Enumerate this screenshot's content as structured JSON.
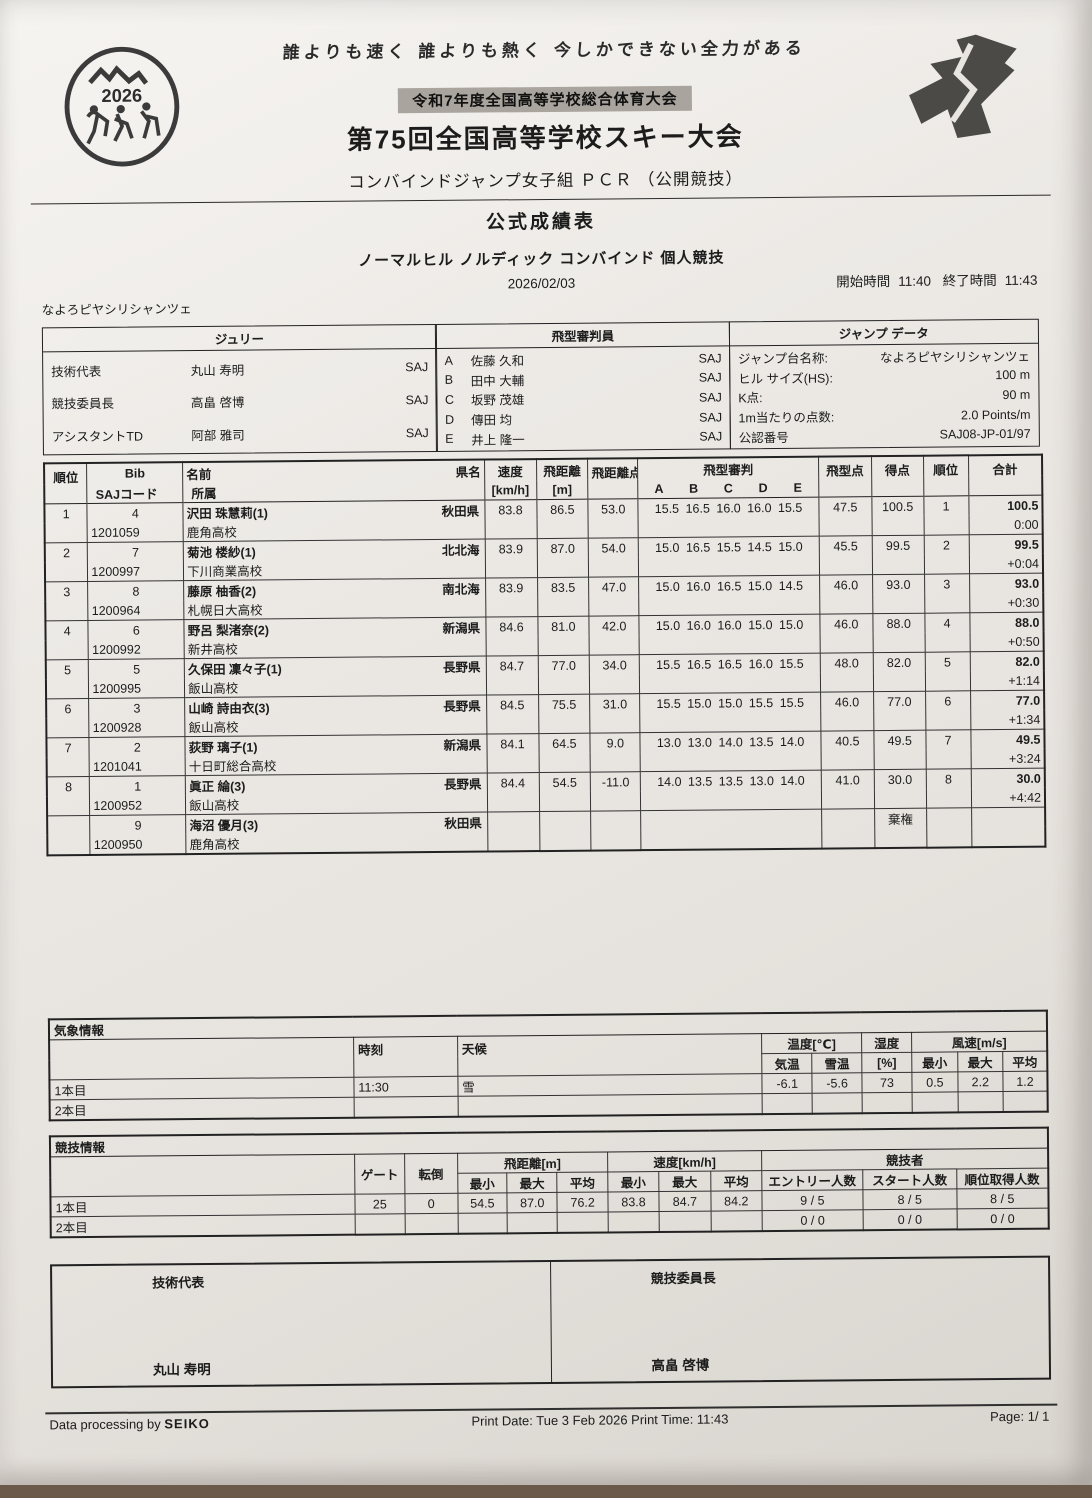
{
  "header": {
    "slogan": "誰よりも速く 誰よりも熱く 今しかできない全力がある",
    "banner": "令和7年度全国高等学校総合体育大会",
    "title": "第75回全国高等学校スキー大会",
    "subtitle": "コンバインドジャンプ女子組 ＰＣＲ （公開競技）",
    "doc_title": "公式成績表",
    "event": "ノーマルヒル ノルディック コンバインド 個人競技",
    "date": "2026/02/03",
    "start_label": "開始時間",
    "start_time": "11:40",
    "end_label": "終了時間",
    "end_time": "11:43",
    "venue": "なよろピヤシリシャンツェ",
    "logo_year": "2026"
  },
  "officials": {
    "jury": {
      "title": "ジュリー",
      "rows": [
        {
          "role": "技術代表",
          "name": "丸山 寿明",
          "org": "SAJ"
        },
        {
          "role": "競技委員長",
          "name": "高畠 啓博",
          "org": "SAJ"
        },
        {
          "role": "アシスタントTD",
          "name": "阿部 雅司",
          "org": "SAJ"
        }
      ]
    },
    "judges": {
      "title": "飛型審判員",
      "rows": [
        {
          "letter": "A",
          "name": "佐藤 久和",
          "org": "SAJ"
        },
        {
          "letter": "B",
          "name": "田中 大輔",
          "org": "SAJ"
        },
        {
          "letter": "C",
          "name": "坂野 茂雄",
          "org": "SAJ"
        },
        {
          "letter": "D",
          "name": "傳田 均",
          "org": "SAJ"
        },
        {
          "letter": "E",
          "name": "井上 隆一",
          "org": "SAJ"
        }
      ]
    },
    "jump_data": {
      "title": "ジャンプ データ",
      "rows": [
        {
          "label": "ジャンプ台名称:",
          "value": "なよろピヤシリシャンツェ"
        },
        {
          "label": "ヒル サイズ(HS):",
          "value": "100 m"
        },
        {
          "label": "K点:",
          "value": "90 m"
        },
        {
          "label": "1m当たりの点数:",
          "value": "2.0 Points/m"
        },
        {
          "label": "公認番号",
          "value": "SAJ08-JP-01/97"
        }
      ]
    }
  },
  "results": {
    "headers": {
      "rank": "順位",
      "bib": "Bib",
      "saj_code": "SAJコード",
      "name": "名前",
      "affiliation": "所属",
      "pref": "県名",
      "speed": "速度",
      "speed_unit": "[km/h]",
      "distance": "飛距離",
      "distance_unit": "[m]",
      "distance_points": "飛距離点",
      "style_judges": "飛型審判",
      "judge_letters": [
        "A",
        "B",
        "C",
        "D",
        "E"
      ],
      "style_points": "飛型点",
      "points": "得点",
      "rank2": "順位",
      "total": "合計"
    },
    "rows": [
      {
        "rank": "1",
        "bib": "4",
        "saj": "1201059",
        "name": "沢田 珠慧莉(1)",
        "school": "鹿角高校",
        "pref": "秋田県",
        "speed": "83.8",
        "dist": "86.5",
        "dist_pts": "53.0",
        "judges": "15.5 16.5 16.0 16.0 15.5",
        "style_pts": "47.5",
        "points": "100.5",
        "rank2": "1",
        "total": "100.5",
        "behind": "0:00"
      },
      {
        "rank": "2",
        "bib": "7",
        "saj": "1200997",
        "name": "菊池 楼紗(1)",
        "school": "下川商業高校",
        "pref": "北北海",
        "speed": "83.9",
        "dist": "87.0",
        "dist_pts": "54.0",
        "judges": "15.0 16.5 15.5 14.5 15.0",
        "style_pts": "45.5",
        "points": "99.5",
        "rank2": "2",
        "total": "99.5",
        "behind": "+0:04"
      },
      {
        "rank": "3",
        "bib": "8",
        "saj": "1200964",
        "name": "藤原 柚香(2)",
        "school": "札幌日大高校",
        "pref": "南北海",
        "speed": "83.9",
        "dist": "83.5",
        "dist_pts": "47.0",
        "judges": "15.0 16.0 16.5 15.0 14.5",
        "style_pts": "46.0",
        "points": "93.0",
        "rank2": "3",
        "total": "93.0",
        "behind": "+0:30"
      },
      {
        "rank": "4",
        "bib": "6",
        "saj": "1200992",
        "name": "野呂 梨渚奈(2)",
        "school": "新井高校",
        "pref": "新潟県",
        "speed": "84.6",
        "dist": "81.0",
        "dist_pts": "42.0",
        "judges": "15.0 16.0 16.0 15.0 15.0",
        "style_pts": "46.0",
        "points": "88.0",
        "rank2": "4",
        "total": "88.0",
        "behind": "+0:50"
      },
      {
        "rank": "5",
        "bib": "5",
        "saj": "1200995",
        "name": "久保田 凜々子(1)",
        "school": "飯山高校",
        "pref": "長野県",
        "speed": "84.7",
        "dist": "77.0",
        "dist_pts": "34.0",
        "judges": "15.5 16.5 16.5 16.0 15.5",
        "style_pts": "48.0",
        "points": "82.0",
        "rank2": "5",
        "total": "82.0",
        "behind": "+1:14"
      },
      {
        "rank": "6",
        "bib": "3",
        "saj": "1200928",
        "name": "山崎 詩由衣(3)",
        "school": "飯山高校",
        "pref": "長野県",
        "speed": "84.5",
        "dist": "75.5",
        "dist_pts": "31.0",
        "judges": "15.5 15.0 15.0 15.5 15.5",
        "style_pts": "46.0",
        "points": "77.0",
        "rank2": "6",
        "total": "77.0",
        "behind": "+1:34"
      },
      {
        "rank": "7",
        "bib": "2",
        "saj": "1201041",
        "name": "荻野 璃子(1)",
        "school": "十日町総合高校",
        "pref": "新潟県",
        "speed": "84.1",
        "dist": "64.5",
        "dist_pts": "9.0",
        "judges": "13.0 13.0 14.0 13.5 14.0",
        "style_pts": "40.5",
        "points": "49.5",
        "rank2": "7",
        "total": "49.5",
        "behind": "+3:24"
      },
      {
        "rank": "8",
        "bib": "1",
        "saj": "1200952",
        "name": "眞正 綸(3)",
        "school": "飯山高校",
        "pref": "長野県",
        "speed": "84.4",
        "dist": "54.5",
        "dist_pts": "-11.0",
        "judges": "14.0 13.5 13.5 13.0 14.0",
        "style_pts": "41.0",
        "points": "30.0",
        "rank2": "8",
        "total": "30.0",
        "behind": "+4:42"
      },
      {
        "rank": "",
        "bib": "9",
        "saj": "1200950",
        "name": "海沼 優月(3)",
        "school": "鹿角高校",
        "pref": "秋田県",
        "speed": "",
        "dist": "",
        "dist_pts": "",
        "judges": "",
        "style_pts": "",
        "points": "棄権",
        "rank2": "",
        "total": "",
        "behind": ""
      }
    ]
  },
  "weather": {
    "section_title": "気象情報",
    "col_time": "時刻",
    "col_sky": "天候",
    "col_temp": "温度[℃]",
    "col_air": "気温",
    "col_snow": "雪温",
    "col_hum": "湿度",
    "col_hum_unit": "[%]",
    "col_wind": "風速[m/s]",
    "col_min": "最小",
    "col_max": "最大",
    "col_avg": "平均",
    "rows": [
      {
        "label": "1本目",
        "time": "11:30",
        "sky": "雪",
        "air": "-6.1",
        "snow": "-5.6",
        "hum": "73",
        "wmin": "0.5",
        "wmax": "2.2",
        "wavg": "1.2"
      },
      {
        "label": "2本目",
        "time": "",
        "sky": "",
        "air": "",
        "snow": "",
        "hum": "",
        "wmin": "",
        "wmax": "",
        "wavg": ""
      }
    ]
  },
  "competition": {
    "section_title": "競技情報",
    "col_gate": "ゲート",
    "col_fall": "転倒",
    "col_dist": "飛距離[m]",
    "col_speed": "速度[km/h]",
    "col_min": "最小",
    "col_max": "最大",
    "col_avg": "平均",
    "col_competitors": "競技者",
    "col_entries": "エントリー人数",
    "col_starters": "スタート人数",
    "col_ranked": "順位取得人数",
    "rows": [
      {
        "label": "1本目",
        "gate": "25",
        "fall": "0",
        "dmin": "54.5",
        "dmax": "87.0",
        "davg": "76.2",
        "smin": "83.8",
        "smax": "84.7",
        "savg": "84.2",
        "entries": "9 / 5",
        "starters": "8 / 5",
        "ranked": "8 / 5"
      },
      {
        "label": "2本目",
        "gate": "",
        "fall": "",
        "dmin": "",
        "dmax": "",
        "davg": "",
        "smin": "",
        "smax": "",
        "savg": "",
        "entries": "0 / 0",
        "starters": "0 / 0",
        "ranked": "0 / 0"
      }
    ]
  },
  "signatures": {
    "left_title": "技術代表",
    "left_name": "丸山 寿明",
    "right_title": "競技委員長",
    "right_name": "高畠 啓博"
  },
  "footer": {
    "left_prefix": "Data processing by ",
    "brand": "SEIKO",
    "center": "Print Date: Tue 3 Feb 2026  Print Time: 11:43",
    "page": "Page: 1/ 1"
  }
}
